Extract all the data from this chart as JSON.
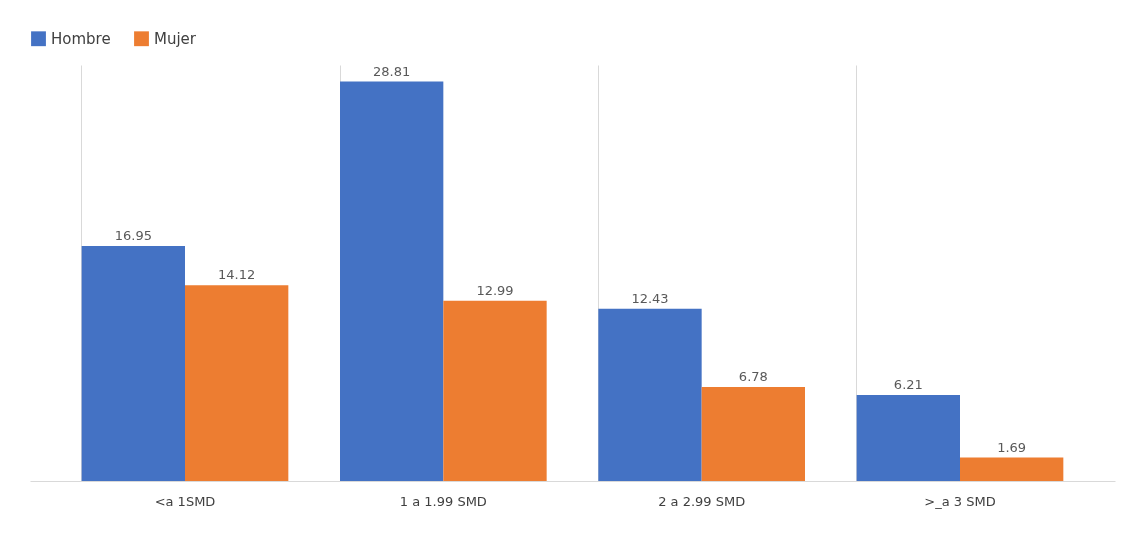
{
  "chart_data": {
    "type": "bar",
    "categories": [
      "<a 1SMD",
      "1 a 1.99 SMD",
      "2 a 2.99 SMD",
      ">_a 3 SMD"
    ],
    "series": [
      {
        "name": "Hombre",
        "color": "#4472c4",
        "values": [
          16.95,
          28.81,
          12.43,
          6.21
        ]
      },
      {
        "name": "Mujer",
        "color": "#ed7d31",
        "values": [
          14.12,
          12.99,
          6.78,
          1.69
        ]
      }
    ],
    "data_labels": true,
    "legend": "top",
    "grid": "x",
    "tick_labels": "x"
  }
}
